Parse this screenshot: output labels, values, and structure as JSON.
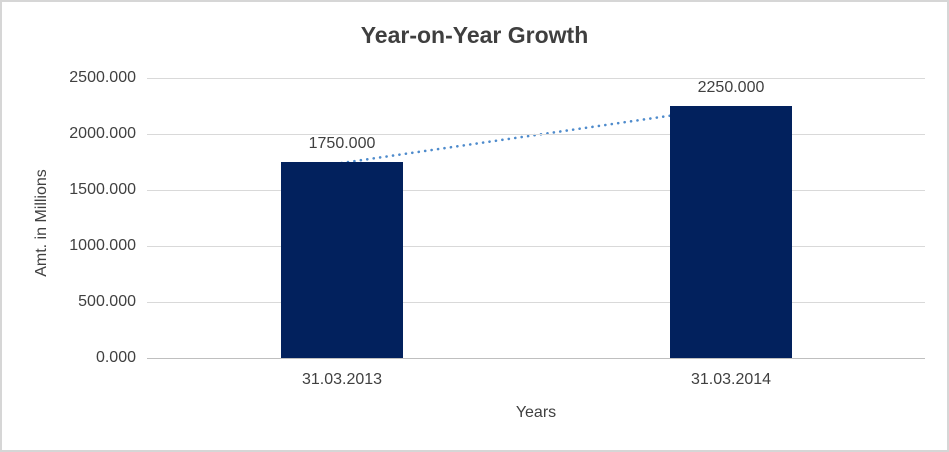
{
  "chart_data": {
    "type": "bar",
    "title": "Year-on-Year Growth",
    "xlabel": "Years",
    "ylabel": "Amt. in Millions",
    "categories": [
      "31.03.2013",
      "31.03.2014"
    ],
    "values": [
      1750,
      2250
    ],
    "value_labels": [
      "1750.000",
      "2250.000"
    ],
    "ylim": [
      0,
      2500
    ],
    "ytick_values": [
      0,
      500,
      1000,
      1500,
      2000,
      2500
    ],
    "ytick_labels": [
      "0.000",
      "500.000",
      "1000.000",
      "1500.000",
      "2000.000",
      "2500.000"
    ],
    "grid": true,
    "legend": "none",
    "bar_color": "#02215d",
    "gridline_color": "#d9d9d9",
    "trendline": {
      "type": "linear",
      "style": "dotted",
      "color": "#4e8bcc",
      "connects": "bar tops, 1750 to 2250"
    }
  }
}
